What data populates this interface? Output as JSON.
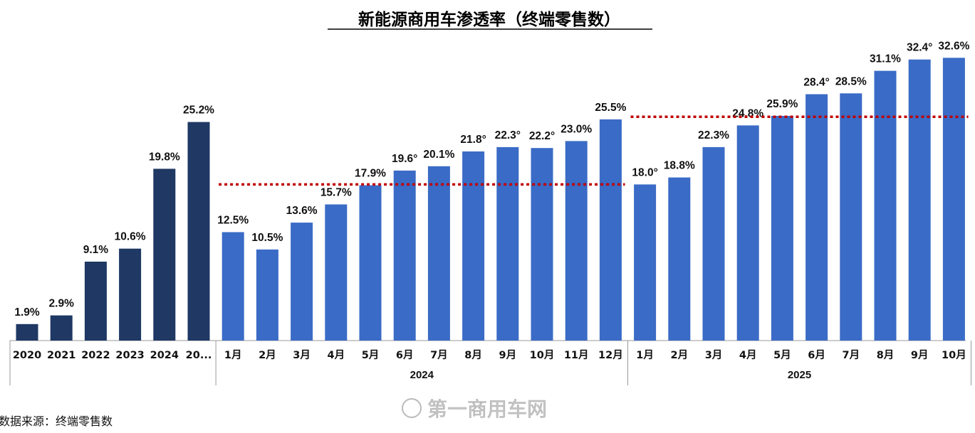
{
  "chart_data": {
    "type": "bar",
    "title": "新能源商用车渗透率（终端零售数）",
    "unit": "%",
    "source": "数据来源：终端零售数",
    "watermark": "第一商用车网",
    "ylim": [
      0,
      35
    ],
    "colors": {
      "annual": "#1f3864",
      "monthly": "#3a6bc6",
      "avg_line": "#c00000",
      "highlight_label": "#e02020",
      "axis": "#999999"
    },
    "groups": [
      {
        "name": "",
        "kind": "annual",
        "categories": [
          "2020",
          "2021",
          "2022",
          "2023",
          "2024",
          "20..."
        ],
        "values": [
          1.9,
          2.9,
          9.1,
          10.6,
          19.8,
          25.2
        ],
        "labels": [
          "1.9%",
          "2.9%",
          "9.1%",
          "10.6%",
          "19.8%",
          "25.2%"
        ]
      },
      {
        "name": "2024",
        "kind": "monthly",
        "categories": [
          "1月",
          "2月",
          "3月",
          "4月",
          "5月",
          "6月",
          "7月",
          "8月",
          "9月",
          "10月",
          "11月",
          "12月"
        ],
        "values": [
          12.5,
          10.5,
          13.6,
          15.7,
          17.9,
          19.6,
          20.1,
          21.8,
          22.3,
          22.2,
          23.0,
          25.5
        ],
        "labels": [
          "12.5%",
          "10.5%",
          "13.6%",
          "15.7%",
          "17.9%",
          "19.6°",
          "20.1%",
          "21.8°",
          "22.3°",
          "22.2°",
          "23.0%",
          "25.5%"
        ],
        "average_line": 18.0
      },
      {
        "name": "2025",
        "kind": "monthly",
        "categories": [
          "1月",
          "2月",
          "3月",
          "4月",
          "5月",
          "6月",
          "7月",
          "8月",
          "9月",
          "10月"
        ],
        "values": [
          18.0,
          18.8,
          22.3,
          24.8,
          25.9,
          28.4,
          28.5,
          31.1,
          32.4,
          32.6
        ],
        "labels": [
          "18.0°",
          "18.8%",
          "22.3%",
          "24.8%",
          "25.9%",
          "28.4°",
          "28.5%",
          "31.1%",
          "32.4°",
          "32.6%"
        ],
        "highlight_index": 9,
        "average_line": 25.8
      }
    ]
  }
}
